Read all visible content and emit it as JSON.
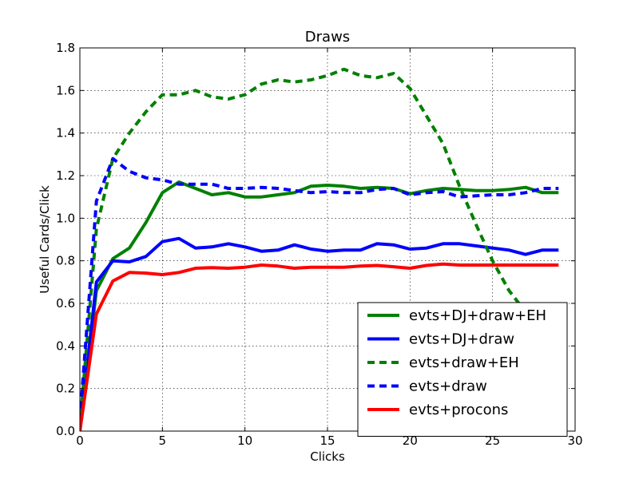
{
  "chart_data": {
    "type": "line",
    "title": "Draws",
    "xlabel": "Clicks",
    "ylabel": "Useful Cards/Click",
    "xlim": [
      0,
      30
    ],
    "ylim": [
      0.0,
      1.8
    ],
    "xticks": [
      "0",
      "5",
      "10",
      "15",
      "20",
      "25",
      "30"
    ],
    "yticks": [
      "0.0",
      "0.2",
      "0.4",
      "0.6",
      "0.8",
      "1.0",
      "1.2",
      "1.4",
      "1.6",
      "1.8"
    ],
    "grid": true,
    "legend_position": "lower-right",
    "series": [
      {
        "name": "evts+DJ+draw+EH",
        "color": "#008000",
        "dash": "solid",
        "x": [
          0,
          1,
          2,
          3,
          4,
          5,
          6,
          7,
          8,
          9,
          10,
          11,
          12,
          13,
          14,
          15,
          16,
          17,
          18,
          19,
          20,
          21,
          22,
          23,
          24,
          25,
          26,
          27,
          28,
          29
        ],
        "values": [
          0.0,
          0.66,
          0.81,
          0.86,
          0.98,
          1.12,
          1.17,
          1.14,
          1.11,
          1.12,
          1.1,
          1.1,
          1.11,
          1.12,
          1.15,
          1.155,
          1.15,
          1.14,
          1.145,
          1.14,
          1.115,
          1.13,
          1.14,
          1.135,
          1.13,
          1.13,
          1.135,
          1.145,
          1.12,
          1.12
        ]
      },
      {
        "name": "evts+DJ+draw",
        "color": "#0000ff",
        "dash": "solid",
        "x": [
          0,
          1,
          2,
          3,
          4,
          5,
          6,
          7,
          8,
          9,
          10,
          11,
          12,
          13,
          14,
          15,
          16,
          17,
          18,
          19,
          20,
          21,
          22,
          23,
          24,
          25,
          26,
          27,
          28,
          29
        ],
        "values": [
          0.0,
          0.7,
          0.8,
          0.795,
          0.82,
          0.89,
          0.905,
          0.86,
          0.865,
          0.88,
          0.865,
          0.845,
          0.85,
          0.875,
          0.855,
          0.845,
          0.85,
          0.85,
          0.88,
          0.875,
          0.855,
          0.86,
          0.88,
          0.88,
          0.87,
          0.86,
          0.85,
          0.83,
          0.85,
          0.85
        ]
      },
      {
        "name": "evts+draw+EH",
        "color": "#008000",
        "dash": "dashed",
        "x": [
          0,
          1,
          2,
          3,
          4,
          5,
          6,
          7,
          8,
          9,
          10,
          11,
          12,
          13,
          14,
          15,
          16,
          17,
          18,
          19,
          20,
          21,
          22,
          23,
          24,
          25,
          26,
          27
        ],
        "values": [
          0.02,
          0.95,
          1.28,
          1.4,
          1.5,
          1.58,
          1.58,
          1.6,
          1.57,
          1.56,
          1.58,
          1.63,
          1.65,
          1.64,
          1.65,
          1.67,
          1.7,
          1.67,
          1.66,
          1.68,
          1.61,
          1.48,
          1.35,
          1.15,
          0.97,
          0.8,
          0.66,
          0.56
        ]
      },
      {
        "name": "evts+draw",
        "color": "#0000ff",
        "dash": "dashed",
        "x": [
          0,
          1,
          2,
          3,
          4,
          5,
          6,
          7,
          8,
          9,
          10,
          11,
          12,
          13,
          14,
          15,
          16,
          17,
          18,
          19,
          20,
          21,
          22,
          23,
          24,
          25,
          26,
          27,
          28,
          29
        ],
        "values": [
          0.05,
          1.08,
          1.28,
          1.22,
          1.19,
          1.18,
          1.16,
          1.16,
          1.16,
          1.14,
          1.14,
          1.145,
          1.14,
          1.13,
          1.12,
          1.125,
          1.12,
          1.12,
          1.135,
          1.14,
          1.11,
          1.12,
          1.125,
          1.1,
          1.105,
          1.11,
          1.11,
          1.12,
          1.14,
          1.14
        ]
      },
      {
        "name": "evts+procons",
        "color": "#ff0000",
        "dash": "solid",
        "x": [
          0,
          1,
          2,
          3,
          4,
          5,
          6,
          7,
          8,
          9,
          10,
          11,
          12,
          13,
          14,
          15,
          16,
          17,
          18,
          19,
          20,
          21,
          22,
          23,
          24,
          25,
          26,
          27,
          28,
          29
        ],
        "values": [
          0.0,
          0.55,
          0.705,
          0.745,
          0.742,
          0.735,
          0.745,
          0.765,
          0.768,
          0.765,
          0.77,
          0.78,
          0.775,
          0.765,
          0.77,
          0.77,
          0.77,
          0.775,
          0.778,
          0.772,
          0.765,
          0.778,
          0.785,
          0.78,
          0.78,
          0.78,
          0.78,
          0.78,
          0.78,
          0.78
        ]
      }
    ]
  }
}
